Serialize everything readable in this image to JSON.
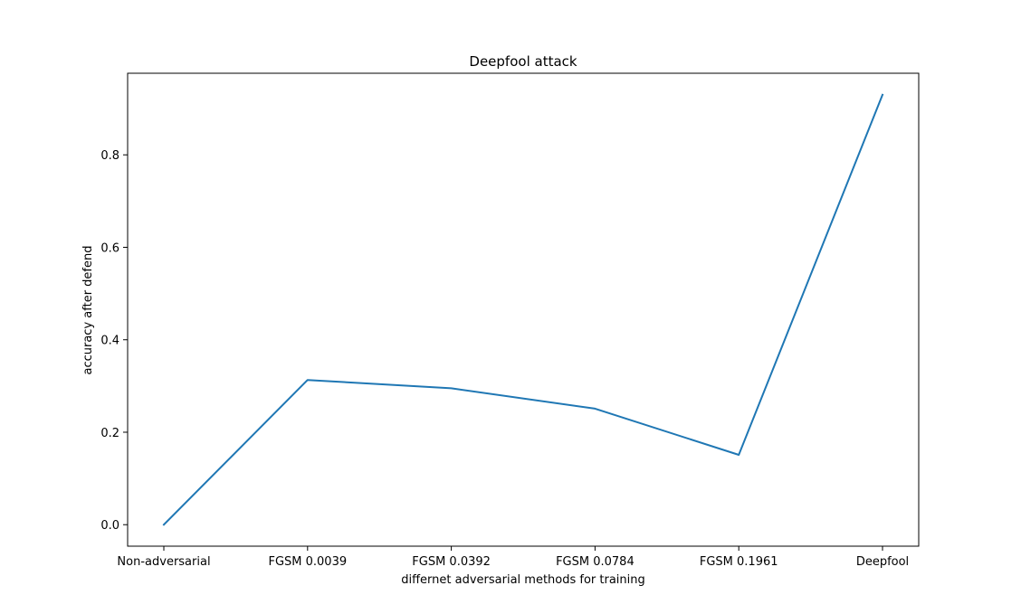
{
  "chart_data": {
    "type": "line",
    "title": "Deepfool attack",
    "xlabel": "differnet adversarial methods for training",
    "ylabel": "accuracy after defend",
    "categories": [
      "Non-adversarial",
      "FGSM 0.0039",
      "FGSM 0.0392",
      "FGSM 0.0784",
      "FGSM 0.1961",
      "Deepfool"
    ],
    "series": [
      {
        "values": [
          0.0,
          0.313,
          0.295,
          0.251,
          0.151,
          0.93
        ],
        "color": "#1f77b4"
      }
    ],
    "ylim": [
      -0.0465,
      0.9765
    ],
    "yticks": [
      "0.0",
      "0.2",
      "0.4",
      "0.6",
      "0.8"
    ],
    "grid": false,
    "legend": "none"
  }
}
